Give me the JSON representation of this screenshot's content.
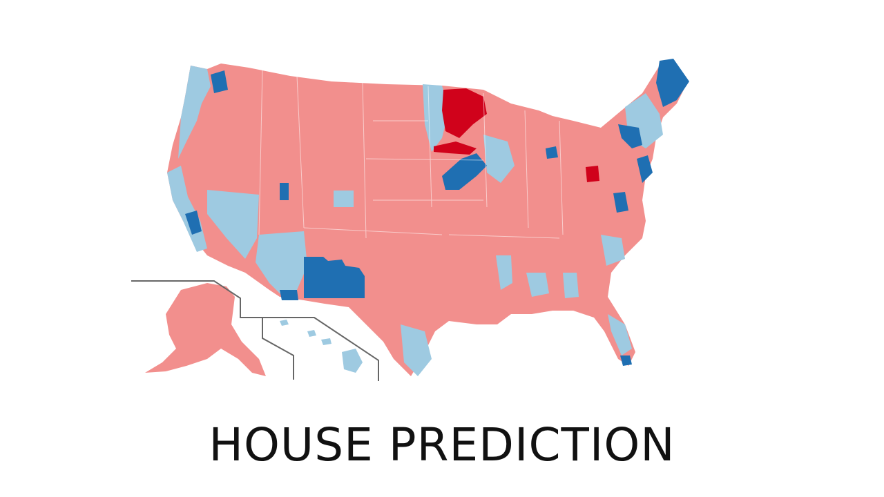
{
  "title": "HOUSE PREDICTION",
  "colors": {
    "safe_republican": "#f28f8d",
    "gain_republican": "#d0021b",
    "lean_democrat": "#9ecae1",
    "safe_democrat": "#1f6fb2",
    "background": "#ffffff",
    "inset_border": "#666666"
  },
  "insets": [
    "Alaska",
    "Hawaii"
  ]
}
